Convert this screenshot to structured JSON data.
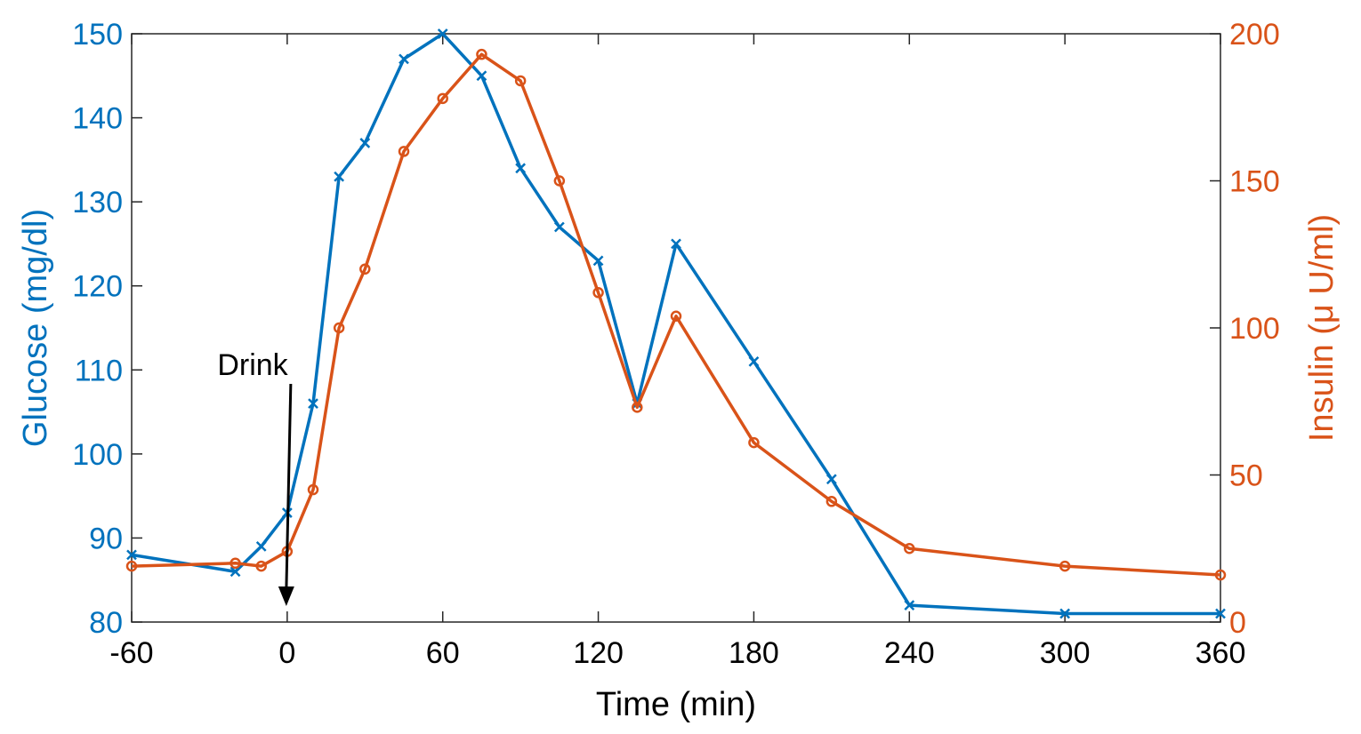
{
  "chart_data": {
    "type": "line",
    "title": "",
    "xlabel": "Time (min)",
    "ylabel_left": "Glucose (mg/dl)",
    "ylabel_right": "Insulin (μ U/ml)",
    "xlim": [
      -60,
      360
    ],
    "ylim_left": [
      80,
      150
    ],
    "ylim_right": [
      0,
      200
    ],
    "xticks": [
      -60,
      0,
      60,
      120,
      180,
      240,
      300,
      360
    ],
    "yticks_left": [
      80,
      90,
      100,
      110,
      120,
      130,
      140,
      150
    ],
    "yticks_right": [
      0,
      50,
      100,
      150,
      200
    ],
    "grid": false,
    "colors": {
      "glucose": "#0072BD",
      "insulin": "#D95319",
      "axes": "#262626"
    },
    "series": [
      {
        "key": "glucose",
        "axis": "left",
        "marker": "x",
        "x": [
          -60,
          -20,
          -10,
          0,
          10,
          20,
          30,
          45,
          60,
          75,
          90,
          105,
          120,
          135,
          150,
          180,
          210,
          240,
          300,
          360
        ],
        "y": [
          88,
          86,
          89,
          93,
          106,
          133,
          137,
          147,
          150,
          145,
          134,
          127,
          123,
          106,
          125,
          111,
          97,
          82,
          81,
          81
        ]
      },
      {
        "key": "insulin",
        "axis": "right",
        "marker": "o",
        "x": [
          -60,
          -20,
          -10,
          0,
          10,
          20,
          30,
          45,
          60,
          75,
          90,
          105,
          120,
          135,
          150,
          180,
          210,
          240,
          300,
          360
        ],
        "y": [
          19,
          20,
          19,
          24,
          45,
          100,
          120,
          160,
          178,
          193,
          184,
          150,
          112,
          73,
          104,
          61,
          41,
          25,
          19,
          16
        ]
      }
    ],
    "annotations": [
      {
        "text": "Drink",
        "x": 0
      }
    ]
  }
}
